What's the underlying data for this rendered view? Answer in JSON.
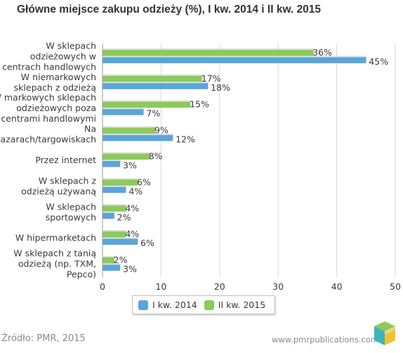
{
  "title": "Główne miejsce zakupu odzieży (%), I kw. 2014 i II kw. 2015",
  "source": "Źródło: PMR, 2015",
  "website": "www.pmrpublications.com",
  "colors": {
    "series_2014": "#5aa5d8",
    "series_2015": "#8bcb5a",
    "grid": "#d9d9d9",
    "axis": "#9a9a9a"
  },
  "legend": {
    "items": [
      {
        "label": "I kw. 2014"
      },
      {
        "label": "II kw. 2015"
      }
    ]
  },
  "chart_data": {
    "type": "bar",
    "orientation": "horizontal",
    "title": "Główne miejsce zakupu odzieży (%), I kw. 2014 i II kw. 2015",
    "categories": [
      "W sklepach odzieżowych w centrach handlowych",
      "W niemarkowych sklepach z odzieżą",
      "W markowych sklepach odzieżowych poza centrami handlowymi",
      "Na bazarach/targowiskach",
      "Przez internet",
      "W sklepach z odzieżą używaną",
      "W sklepach sportowych",
      "W hipermarketach",
      "W sklepach z tanią odzieżą (np. TXM, Pepco)"
    ],
    "category_lines": [
      [
        "W sklepach",
        "odzieżowych w",
        "centrach handlowych"
      ],
      [
        "W niemarkowych",
        "sklepach z odzieżą"
      ],
      [
        "W markowych sklepach",
        "odzieżowych poza",
        "centrami handlowymi"
      ],
      [
        "Na",
        "bazarach/targowiskach"
      ],
      [
        "Przez internet"
      ],
      [
        "W sklepach z",
        "odzieżą używaną"
      ],
      [
        "W sklepach",
        "sportowych"
      ],
      [
        "W hipermarketach"
      ],
      [
        "W sklepach z tanią",
        "odzieżą (np. TXM,",
        "Pepco)"
      ]
    ],
    "series": [
      {
        "name": "I kw. 2014",
        "values": [
          45,
          18,
          7,
          12,
          3,
          4,
          2,
          6,
          3
        ],
        "labels": [
          "45%",
          "18%",
          "7%",
          "12%",
          "3%",
          "4%",
          "2%",
          "6%",
          "3%"
        ]
      },
      {
        "name": "II kw. 2015",
        "values": [
          36,
          17,
          15,
          9,
          8,
          6,
          4,
          4,
          2
        ],
        "labels": [
          "36%",
          "17%",
          "15%",
          "9%",
          "8%",
          "6%",
          "4%",
          "4%",
          "2%"
        ]
      }
    ],
    "xlim": [
      0,
      50
    ],
    "xticks": [
      0,
      10,
      20,
      30,
      40,
      50
    ],
    "xtick_labels": [
      "0",
      "10",
      "20",
      "30",
      "40",
      "50"
    ],
    "grid": true,
    "legend_position": "bottom"
  }
}
